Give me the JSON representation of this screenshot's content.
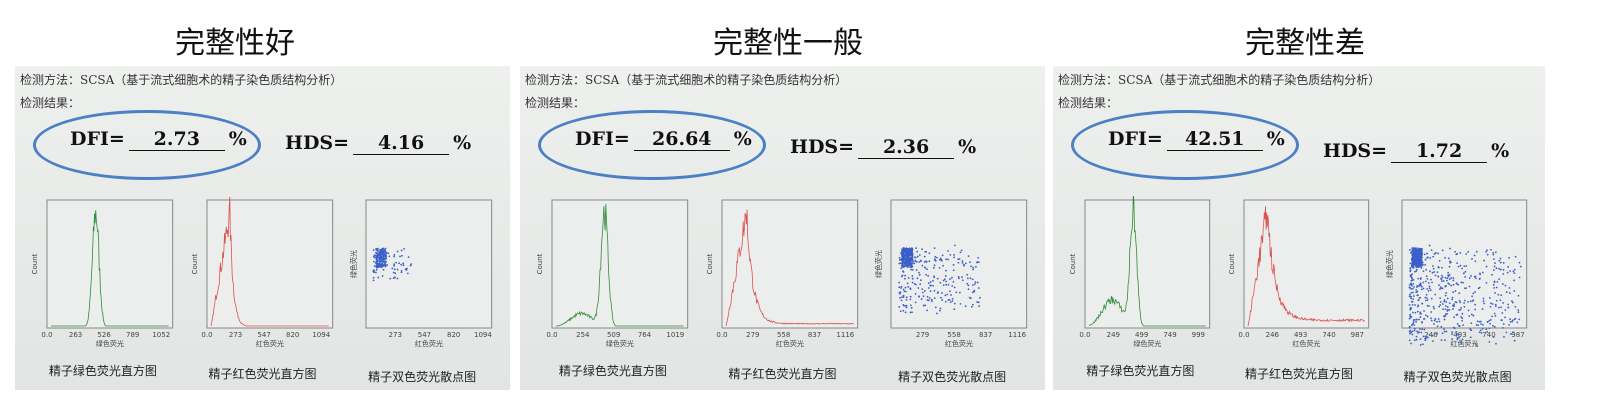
{
  "panels": [
    {
      "title": "完整性好",
      "method": "检测方法：SCSA（基于流式细胞术的精子染色质结构分析）",
      "result_label": "检测结果：",
      "dfi_label": "DFI=",
      "dfi_value": "2.73",
      "dfi_unit": "%",
      "hds_label": "HDS=",
      "hds_value": "4.16",
      "hds_unit": "%",
      "plots": [
        {
          "caption": "精子绿色荧光直方图",
          "xlabel": "绿色荧光",
          "ylabel": "Count",
          "xticks": [
            "0.0",
            "263",
            "526",
            "789",
            "1052"
          ]
        },
        {
          "caption": "精子红色荧光直方图",
          "xlabel": "红色荧光",
          "ylabel": "Count",
          "xticks": [
            "0.0",
            "273",
            "547",
            "820",
            "1094"
          ]
        },
        {
          "caption": "精子双色荧光散点图",
          "xlabel": "红色荧光",
          "ylabel": "绿色荧光",
          "xticks": [
            "273",
            "547",
            "820",
            "1094"
          ]
        }
      ]
    },
    {
      "title": "完整性一般",
      "method": "检测方法：SCSA（基于流式细胞术的精子染色质结构分析）",
      "result_label": "检测结果：",
      "dfi_label": "DFI=",
      "dfi_value": "26.64",
      "dfi_unit": "%",
      "hds_label": "HDS=",
      "hds_value": "2.36",
      "hds_unit": "%",
      "plots": [
        {
          "caption": "精子绿色荧光直方图",
          "xlabel": "绿色荧光",
          "ylabel": "Count",
          "xticks": [
            "0.0",
            "254",
            "509",
            "764",
            "1019"
          ]
        },
        {
          "caption": "精子红色荧光直方图",
          "xlabel": "红色荧光",
          "ylabel": "Count",
          "xticks": [
            "0.0",
            "279",
            "558",
            "837",
            "1116"
          ]
        },
        {
          "caption": "精子双色荧光散点图",
          "xlabel": "红色荧光",
          "ylabel": "绿色荧光",
          "xticks": [
            "279",
            "558",
            "837",
            "1116"
          ]
        }
      ]
    },
    {
      "title": "完整性差",
      "method": "检测方法：SCSA（基于流式细胞术的精子染色质结构分析）",
      "result_label": "检测结果：",
      "dfi_label": "DFI=",
      "dfi_value": "42.51",
      "dfi_unit": "%",
      "hds_label": "HDS=",
      "hds_value": "1.72",
      "hds_unit": "%",
      "plots": [
        {
          "caption": "精子绿色荧光直方图",
          "xlabel": "绿色荧光",
          "ylabel": "Count",
          "xticks": [
            "0.0",
            "249",
            "499",
            "749",
            "999"
          ]
        },
        {
          "caption": "精子红色荧光直方图",
          "xlabel": "红色荧光",
          "ylabel": "Count",
          "xticks": [
            "0.0",
            "246",
            "493",
            "740",
            "987"
          ]
        },
        {
          "caption": "精子双色荧光散点图",
          "xlabel": "红色荧光",
          "ylabel": "绿色荧光",
          "xticks": [
            "246",
            "493",
            "740",
            "987"
          ]
        }
      ]
    }
  ]
}
